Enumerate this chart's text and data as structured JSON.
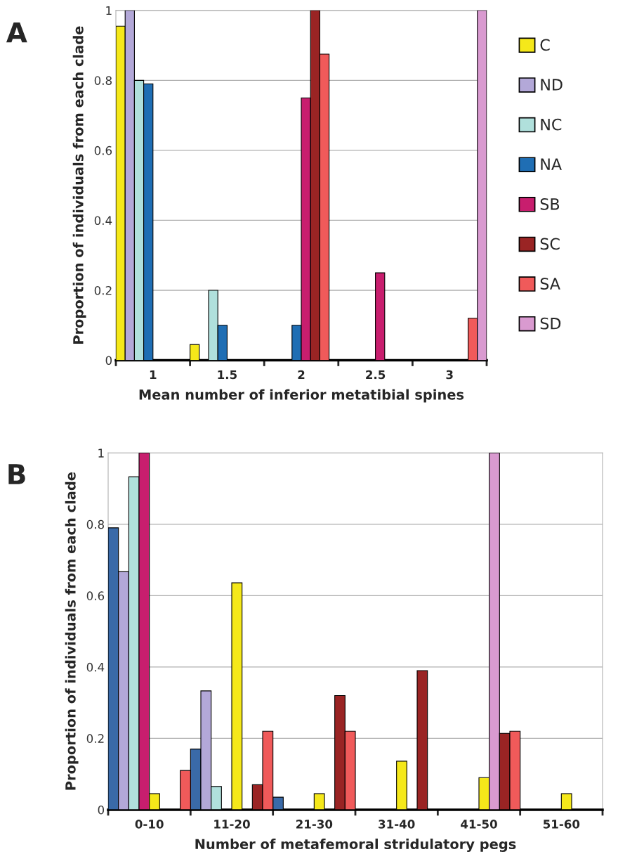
{
  "chart_data": [
    {
      "type": "bar",
      "xlabel": "Mean number of inferior metatibial spines",
      "ylabel": "Proportion of individuals from each clade",
      "annotations": [
        "A"
      ],
      "categories": [
        "1",
        "1.5",
        "2",
        "2.5",
        "3"
      ],
      "ylim": [
        0,
        1
      ],
      "yticks": [
        0,
        0.2,
        0.4,
        0.6,
        0.8,
        1
      ],
      "grid": "y",
      "legend": "right",
      "series": [
        {
          "name": "C",
          "color": "#f5e81a",
          "values": [
            0.955,
            0.045,
            0,
            0,
            0
          ]
        },
        {
          "name": "ND",
          "color": "#b3a8d8",
          "values": [
            1,
            0,
            0,
            0,
            0
          ]
        },
        {
          "name": "NC",
          "color": "#b0e0dc",
          "values": [
            0.8,
            0.2,
            0,
            0,
            0
          ]
        },
        {
          "name": "NA",
          "color": "#1f6eb4",
          "values": [
            0.79,
            0.1,
            0.1,
            0,
            0
          ]
        },
        {
          "name": "SB",
          "color": "#c81e6e",
          "values": [
            0,
            0,
            0.75,
            0.25,
            0
          ]
        },
        {
          "name": "SC",
          "color": "#9a2424",
          "values": [
            0,
            0,
            1,
            0,
            0
          ]
        },
        {
          "name": "SA",
          "color": "#f05a5a",
          "values": [
            0,
            0,
            0.875,
            0,
            0.12
          ]
        },
        {
          "name": "SD",
          "color": "#d99ad0",
          "values": [
            0,
            0,
            0,
            0,
            1
          ]
        }
      ]
    },
    {
      "type": "bar",
      "xlabel": "Number of metafemoral stridulatory pegs",
      "ylabel": "Proportion of individuals from each clade",
      "annotations": [
        "B"
      ],
      "categories": [
        "0-10",
        "11-20",
        "21-30",
        "31-40",
        "41-50",
        "51-60"
      ],
      "ylim": [
        0,
        1
      ],
      "yticks": [
        0,
        0.2,
        0.4,
        0.6,
        0.8,
        1
      ],
      "grid": "y",
      "series": [
        {
          "color": "#3a6aa8",
          "values": [
            0.79,
            0.17,
            0.035,
            0,
            0,
            0
          ]
        },
        {
          "color": "#b3a8d8",
          "values": [
            0.667,
            0.333,
            0,
            0,
            0,
            0
          ]
        },
        {
          "color": "#b0e0dc",
          "values": [
            0.933,
            0.065,
            0,
            0,
            0,
            0
          ]
        },
        {
          "color": "#c81e6e",
          "values": [
            1,
            0,
            0,
            0,
            0,
            0
          ]
        },
        {
          "color": "#f5e81a",
          "values": [
            0.045,
            0.636,
            0.045,
            0.136,
            0.09,
            0.045
          ]
        },
        {
          "color": "#d99ad0",
          "values": [
            0,
            0,
            0,
            0,
            1,
            null
          ]
        },
        {
          "color": "#9a2424",
          "values": [
            0,
            0.07,
            0.32,
            0.39,
            0.214,
            null
          ]
        },
        {
          "color": "#f05a5a",
          "values": [
            0.11,
            0.22,
            0.22,
            0,
            0.22,
            null
          ]
        }
      ]
    }
  ]
}
